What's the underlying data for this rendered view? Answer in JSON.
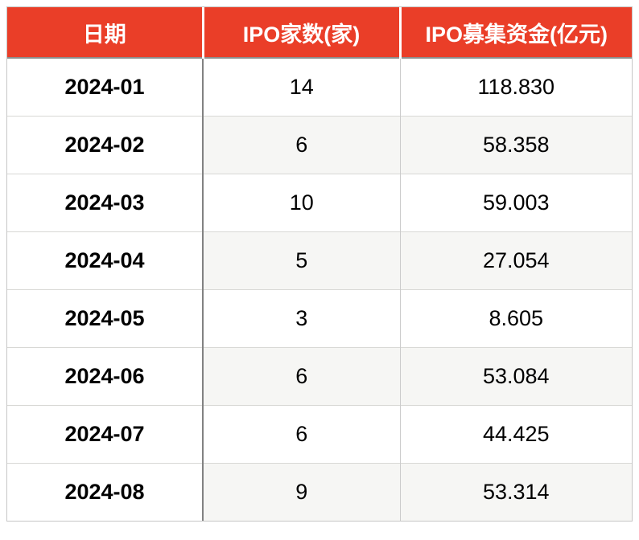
{
  "colors": {
    "header_bg": "#ea3e28",
    "header_text": "#ffffff",
    "row_stripe_bg": "#f6f6f4",
    "body_text": "#000000",
    "divider_dark": "#828282",
    "divider_light": "#cbcbcb",
    "outer_border": "#c6c6c6"
  },
  "table": {
    "columns": [
      {
        "label": "日期"
      },
      {
        "label": "IPO家数(家)"
      },
      {
        "label": "IPO募集资金(亿元)"
      }
    ],
    "rows": [
      {
        "date": "2024-01",
        "count": "14",
        "funds": "118.830"
      },
      {
        "date": "2024-02",
        "count": "6",
        "funds": "58.358"
      },
      {
        "date": "2024-03",
        "count": "10",
        "funds": "59.003"
      },
      {
        "date": "2024-04",
        "count": "5",
        "funds": "27.054"
      },
      {
        "date": "2024-05",
        "count": "3",
        "funds": "8.605"
      },
      {
        "date": "2024-06",
        "count": "6",
        "funds": "53.084"
      },
      {
        "date": "2024-07",
        "count": "6",
        "funds": "44.425"
      },
      {
        "date": "2024-08",
        "count": "9",
        "funds": "53.314"
      }
    ]
  },
  "chart_data": {
    "type": "table",
    "columns": [
      "日期",
      "IPO家数(家)",
      "IPO募集资金(亿元)"
    ],
    "rows": [
      [
        "2024-01",
        14,
        118.83
      ],
      [
        "2024-02",
        6,
        58.358
      ],
      [
        "2024-03",
        10,
        59.003
      ],
      [
        "2024-04",
        5,
        27.054
      ],
      [
        "2024-05",
        3,
        8.605
      ],
      [
        "2024-06",
        6,
        53.084
      ],
      [
        "2024-07",
        6,
        44.425
      ],
      [
        "2024-08",
        9,
        53.314
      ]
    ]
  }
}
